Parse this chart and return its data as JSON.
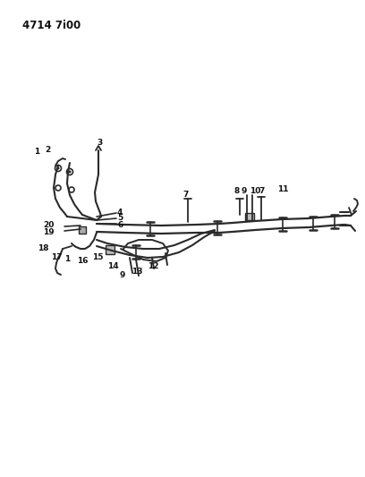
{
  "title": "4714 7i00",
  "bg_color": "#ffffff",
  "line_color": "#2a2a2a",
  "text_color": "#111111",
  "fig_width": 4.08,
  "fig_height": 5.33,
  "dpi": 100
}
